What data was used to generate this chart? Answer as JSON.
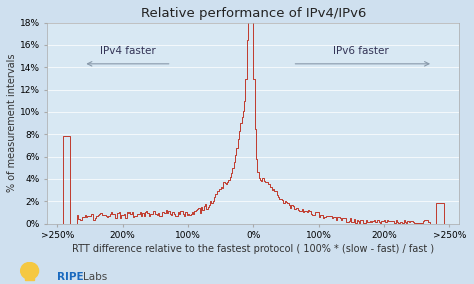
{
  "title": "Relative performance of IPv4/IPv6",
  "xlabel": "RTT difference relative to the fastest protocol ( 100% * (slow - fast) / fast )",
  "ylabel": "% of measurement intervals",
  "background_color": "#cfe0ef",
  "plot_bg_color": "#d8e8f3",
  "line_color": "#c0392b",
  "title_fontsize": 9.5,
  "label_fontsize": 7,
  "tick_fontsize": 6.5,
  "ylim": [
    0,
    0.18
  ],
  "yticks": [
    0,
    0.02,
    0.04,
    0.06,
    0.08,
    0.1,
    0.12,
    0.14,
    0.16,
    0.18
  ],
  "ytick_labels": [
    "0%",
    "2%",
    "4%",
    "6%",
    "8%",
    "10%",
    "12%",
    "14%",
    "16%",
    "18%"
  ],
  "xtick_positions": [
    -6,
    -4,
    -2,
    0,
    2,
    4,
    6
  ],
  "xtick_labels": [
    ">250%",
    "200%",
    "100%",
    "0%",
    "100%",
    "200%",
    ">250%"
  ],
  "ipv4_label": "IPv4 faster",
  "ipv6_label": "IPv6 faster",
  "arrow_color": "#8899aa",
  "ripe_color": "#1a6abf",
  "labs_color": "#444444",
  "bulb_color": "#f5c842"
}
